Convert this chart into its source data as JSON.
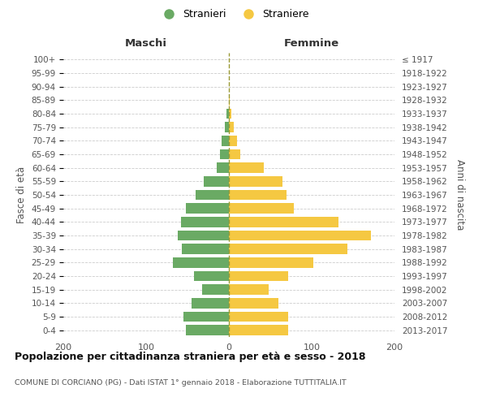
{
  "age_groups": [
    "100+",
    "95-99",
    "90-94",
    "85-89",
    "80-84",
    "75-79",
    "70-74",
    "65-69",
    "60-64",
    "55-59",
    "50-54",
    "45-49",
    "40-44",
    "35-39",
    "30-34",
    "25-29",
    "20-24",
    "15-19",
    "10-14",
    "5-9",
    "0-4"
  ],
  "birth_years": [
    "≤ 1917",
    "1918-1922",
    "1923-1927",
    "1928-1932",
    "1933-1937",
    "1938-1942",
    "1943-1947",
    "1948-1952",
    "1953-1957",
    "1958-1962",
    "1963-1967",
    "1968-1972",
    "1973-1977",
    "1978-1982",
    "1983-1987",
    "1988-1992",
    "1993-1997",
    "1998-2002",
    "2003-2007",
    "2008-2012",
    "2013-2017"
  ],
  "maschi": [
    0,
    0,
    0,
    0,
    3,
    5,
    9,
    11,
    15,
    30,
    40,
    52,
    58,
    62,
    57,
    68,
    42,
    32,
    45,
    55,
    52
  ],
  "femmine": [
    0,
    0,
    0,
    1,
    3,
    6,
    10,
    14,
    42,
    65,
    70,
    78,
    132,
    172,
    143,
    102,
    72,
    48,
    60,
    72,
    72
  ],
  "maschi_color": "#6aaa64",
  "femmine_color": "#f5c842",
  "background_color": "#ffffff",
  "grid_color": "#cccccc",
  "title": "Popolazione per cittadinanza straniera per età e sesso - 2018",
  "subtitle": "COMUNE DI CORCIANO (PG) - Dati ISTAT 1° gennaio 2018 - Elaborazione TUTTITALIA.IT",
  "xlabel_left": "Maschi",
  "xlabel_right": "Femmine",
  "ylabel_left": "Fasce di età",
  "ylabel_right": "Anni di nascita",
  "legend_stranieri": "Stranieri",
  "legend_straniere": "Straniere",
  "xlim": 200,
  "center_line_color": "#999933"
}
